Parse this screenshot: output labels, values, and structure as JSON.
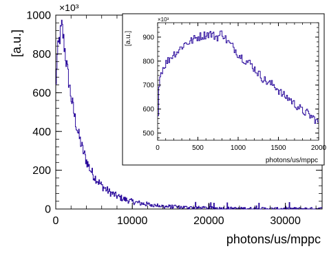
{
  "chart_data": [
    {
      "type": "line",
      "panel": "main",
      "xlabel": "photons/us/mppc",
      "ylabel": "[a.u.]",
      "y_multiplier": "×10³",
      "xlim": [
        0,
        34800
      ],
      "ylim": [
        0,
        1000
      ],
      "x_ticks": [
        0,
        10000,
        20000,
        30000
      ],
      "x_tick_labels": [
        "0",
        "10000",
        "20000",
        "30000"
      ],
      "y_ticks": [
        0,
        200,
        400,
        600,
        800,
        1000
      ],
      "y_tick_labels": [
        "0",
        "200",
        "400",
        "600",
        "800",
        "1000"
      ],
      "grid": false,
      "series": [
        {
          "color": "#2a0a9c",
          "x": [
            0,
            100,
            200,
            300,
            400,
            500,
            600,
            700,
            800,
            900,
            1000,
            1200,
            1500,
            2000,
            2500,
            3000,
            3500,
            4000,
            4500,
            5000,
            6000,
            7000,
            8000,
            9000,
            10000,
            11000,
            12000,
            13000,
            14000,
            15000,
            16000,
            18000,
            20000,
            22000,
            24000,
            26000,
            28000,
            30000,
            32000,
            34000,
            34800
          ],
          "y": [
            560,
            730,
            780,
            820,
            850,
            880,
            900,
            920,
            940,
            920,
            880,
            820,
            720,
            580,
            470,
            380,
            310,
            250,
            205,
            170,
            120,
            88,
            66,
            50,
            38,
            30,
            24,
            19,
            15,
            12,
            10,
            7,
            5,
            4,
            3,
            3,
            2,
            2,
            2,
            2,
            2
          ]
        }
      ]
    },
    {
      "type": "line",
      "panel": "inset",
      "xlabel": "photons/us/mppc",
      "ylabel": "[a.u.]",
      "y_multiplier": "×10³",
      "xlim": [
        0,
        2000
      ],
      "ylim": [
        470,
        960
      ],
      "x_ticks": [
        0,
        500,
        1000,
        1500,
        2000
      ],
      "x_tick_labels": [
        "0",
        "500",
        "1000",
        "1500",
        "2000"
      ],
      "y_ticks": [
        500,
        600,
        700,
        800,
        900
      ],
      "y_tick_labels": [
        "500",
        "600",
        "700",
        "800",
        "900"
      ],
      "grid": false,
      "series": [
        {
          "color": "#2a0a9c",
          "x": [
            0,
            10,
            20,
            50,
            100,
            150,
            200,
            250,
            300,
            350,
            400,
            450,
            500,
            550,
            600,
            650,
            700,
            750,
            800,
            850,
            900,
            950,
            1000,
            1050,
            1100,
            1150,
            1200,
            1250,
            1300,
            1350,
            1400,
            1450,
            1500,
            1550,
            1600,
            1650,
            1700,
            1750,
            1800,
            1850,
            1900,
            1950,
            2000
          ],
          "y": [
            490,
            650,
            720,
            760,
            790,
            810,
            830,
            840,
            860,
            875,
            880,
            890,
            900,
            905,
            910,
            915,
            905,
            900,
            920,
            890,
            870,
            855,
            830,
            815,
            800,
            790,
            770,
            750,
            730,
            715,
            705,
            700,
            680,
            660,
            650,
            640,
            620,
            610,
            590,
            585,
            570,
            560,
            540
          ]
        }
      ]
    }
  ]
}
